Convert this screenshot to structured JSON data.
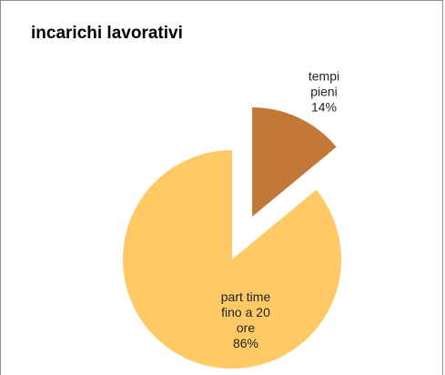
{
  "chart_data": {
    "type": "pie",
    "title": "incarichi lavorativi",
    "categories": [
      "tempi pieni",
      "part time fino a 20 ore"
    ],
    "values": [
      14,
      86
    ],
    "value_labels": [
      "14%",
      "86%"
    ],
    "colors": [
      "#C27836",
      "#FFCA66"
    ]
  }
}
